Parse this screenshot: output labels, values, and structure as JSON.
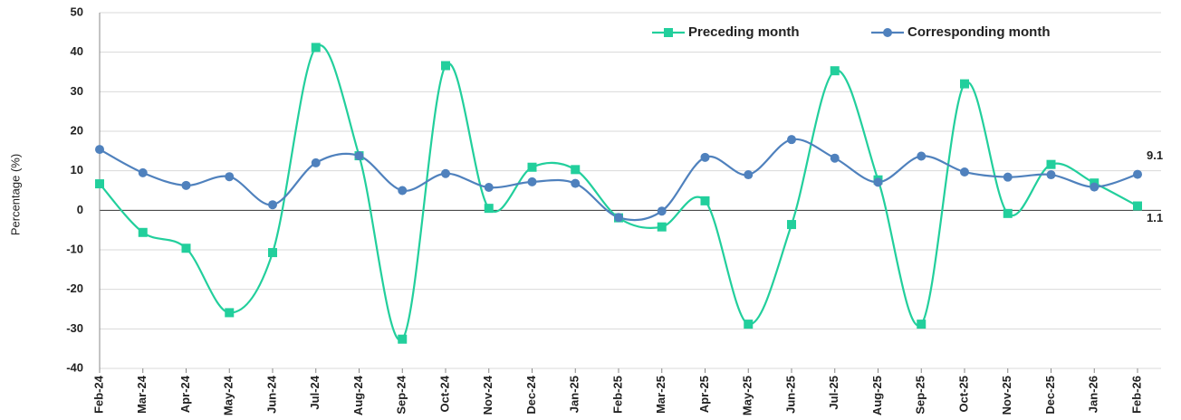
{
  "chart_data": {
    "type": "line",
    "ylabel": "Percentage (%)",
    "categories": [
      "Feb-24",
      "Mar-24",
      "Apr-24",
      "May-24",
      "Jun-24",
      "Jul-24",
      "Aug-24",
      "Sep-24",
      "Oct-24",
      "Nov-24",
      "Dec-24",
      "Jan-25",
      "Feb-25",
      "Mar-25",
      "Apr-25",
      "May-25",
      "Jun-25",
      "Jul-25",
      "Aug-25",
      "Sep-25",
      "Oct-25",
      "Nov-25",
      "Dec-25",
      "Jan-26",
      "Feb-26"
    ],
    "series": [
      {
        "name": "Preceding month",
        "color": "#22cf9c",
        "marker": "square",
        "values": [
          6.7,
          -5.6,
          -9.6,
          -25.9,
          -10.7,
          41.2,
          13.8,
          -32.6,
          36.6,
          0.5,
          10.9,
          10.3,
          -1.9,
          -4.2,
          2.4,
          -28.8,
          -3.6,
          35.3,
          7.7,
          -28.8,
          32.0,
          -0.8,
          11.6,
          6.9,
          1.1
        ]
      },
      {
        "name": "Corresponding month",
        "color": "#4f81bd",
        "marker": "circle",
        "values": [
          15.4,
          9.5,
          6.3,
          8.5,
          1.4,
          12.0,
          13.8,
          5.0,
          9.3,
          5.8,
          7.2,
          6.8,
          -1.8,
          -0.2,
          13.4,
          9.0,
          17.9,
          13.2,
          7.1,
          13.7,
          9.7,
          8.4,
          9.0,
          5.9,
          9.1
        ]
      }
    ],
    "ylim": [
      -40,
      50
    ],
    "yticks": [
      -40,
      -30,
      -20,
      -10,
      0,
      10,
      20,
      30,
      40,
      50
    ],
    "grid": true,
    "smooth": true,
    "legend": "upper right"
  }
}
